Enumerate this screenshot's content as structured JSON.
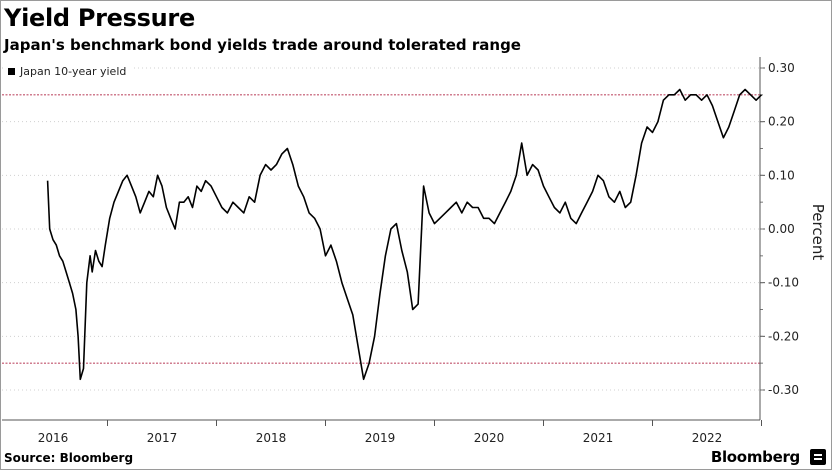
{
  "header": {
    "title": "Yield Pressure",
    "subtitle": "Japan's benchmark bond yields trade around tolerated range"
  },
  "footer": {
    "source": "Source: Bloomberg",
    "brand": "Bloomberg"
  },
  "colors": {
    "series": "#000000",
    "reference_line": "#c0506a",
    "grid": "#d0d0d0"
  },
  "chart_data": {
    "type": "line",
    "xlabel": "",
    "ylabel": "Percent",
    "ylim": [
      -0.32,
      0.32
    ],
    "y_ticks": [
      0.3,
      0.2,
      0.1,
      0.0,
      -0.1,
      -0.2,
      -0.3
    ],
    "y_tick_labels": [
      "0.30",
      "0.20",
      "0.10",
      "0.00",
      "-0.10",
      "-0.20",
      "-0.30"
    ],
    "x_tick_labels": [
      "2016",
      "2017",
      "2018",
      "2019",
      "2020",
      "2021",
      "2022"
    ],
    "x_range": [
      2015.95,
      2022.75
    ],
    "grid": "horizontal dotted",
    "legend": "top-left",
    "reference_lines": [
      0.25,
      -0.25
    ],
    "series": [
      {
        "name": "Japan 10-year yield",
        "x": [
          2015.95,
          2015.97,
          2016.0,
          2016.03,
          2016.06,
          2016.09,
          2016.12,
          2016.15,
          2016.18,
          2016.21,
          2016.23,
          2016.25,
          2016.28,
          2016.31,
          2016.34,
          2016.36,
          2016.39,
          2016.42,
          2016.45,
          2016.48,
          2016.52,
          2016.56,
          2016.6,
          2016.64,
          2016.68,
          2016.72,
          2016.76,
          2016.8,
          2016.84,
          2016.88,
          2016.92,
          2016.96,
          2017.0,
          2017.04,
          2017.08,
          2017.12,
          2017.16,
          2017.2,
          2017.24,
          2017.28,
          2017.32,
          2017.36,
          2017.4,
          2017.45,
          2017.5,
          2017.55,
          2017.6,
          2017.65,
          2017.7,
          2017.75,
          2017.8,
          2017.85,
          2017.9,
          2017.95,
          2018.0,
          2018.05,
          2018.1,
          2018.15,
          2018.2,
          2018.25,
          2018.3,
          2018.35,
          2018.4,
          2018.45,
          2018.5,
          2018.55,
          2018.6,
          2018.65,
          2018.7,
          2018.75,
          2018.8,
          2018.85,
          2018.9,
          2018.95,
          2019.0,
          2019.05,
          2019.1,
          2019.15,
          2019.2,
          2019.25,
          2019.3,
          2019.35,
          2019.4,
          2019.45,
          2019.5,
          2019.55,
          2019.6,
          2019.65,
          2019.7,
          2019.75,
          2019.8,
          2019.85,
          2019.9,
          2019.95,
          2020.0,
          2020.05,
          2020.1,
          2020.15,
          2020.2,
          2020.25,
          2020.3,
          2020.35,
          2020.4,
          2020.45,
          2020.5,
          2020.55,
          2020.6,
          2020.65,
          2020.7,
          2020.75,
          2020.8,
          2020.85,
          2020.9,
          2020.95,
          2021.0,
          2021.05,
          2021.1,
          2021.15,
          2021.2,
          2021.25,
          2021.3,
          2021.35,
          2021.4,
          2021.45,
          2021.5,
          2021.55,
          2021.6,
          2021.65,
          2021.7,
          2021.75,
          2021.8,
          2021.85,
          2021.9,
          2021.95,
          2022.0,
          2022.05,
          2022.1,
          2022.15,
          2022.2,
          2022.25,
          2022.3,
          2022.35,
          2022.4,
          2022.45,
          2022.5
        ],
        "y": [
          0.09,
          0.0,
          -0.02,
          -0.03,
          -0.05,
          -0.06,
          -0.08,
          -0.1,
          -0.12,
          -0.15,
          -0.2,
          -0.28,
          -0.26,
          -0.1,
          -0.05,
          -0.08,
          -0.04,
          -0.06,
          -0.07,
          -0.03,
          0.02,
          0.05,
          0.07,
          0.09,
          0.1,
          0.08,
          0.06,
          0.03,
          0.05,
          0.07,
          0.06,
          0.1,
          0.08,
          0.04,
          0.02,
          0.0,
          0.05,
          0.05,
          0.06,
          0.04,
          0.08,
          0.07,
          0.09,
          0.08,
          0.06,
          0.04,
          0.03,
          0.05,
          0.04,
          0.03,
          0.06,
          0.05,
          0.1,
          0.12,
          0.11,
          0.12,
          0.14,
          0.15,
          0.12,
          0.08,
          0.06,
          0.03,
          0.02,
          0.0,
          -0.05,
          -0.03,
          -0.06,
          -0.1,
          -0.13,
          -0.16,
          -0.22,
          -0.28,
          -0.25,
          -0.2,
          -0.12,
          -0.05,
          0.0,
          0.01,
          -0.04,
          -0.08,
          -0.15,
          -0.14,
          0.08,
          0.03,
          0.01,
          0.02,
          0.03,
          0.04,
          0.05,
          0.03,
          0.05,
          0.04,
          0.04,
          0.02,
          0.02,
          0.01,
          0.03,
          0.05,
          0.07,
          0.1,
          0.16,
          0.1,
          0.12,
          0.11,
          0.08,
          0.06,
          0.04,
          0.03,
          0.05,
          0.02,
          0.01,
          0.03,
          0.05,
          0.07,
          0.1,
          0.09,
          0.06,
          0.05,
          0.07,
          0.04,
          0.05,
          0.1,
          0.16,
          0.19,
          0.18,
          0.2,
          0.24,
          0.25,
          0.25,
          0.26,
          0.24,
          0.25,
          0.25,
          0.24,
          0.25,
          0.23,
          0.2,
          0.17,
          0.19,
          0.22,
          0.25,
          0.26,
          0.25,
          0.24,
          0.25
        ]
      }
    ]
  }
}
